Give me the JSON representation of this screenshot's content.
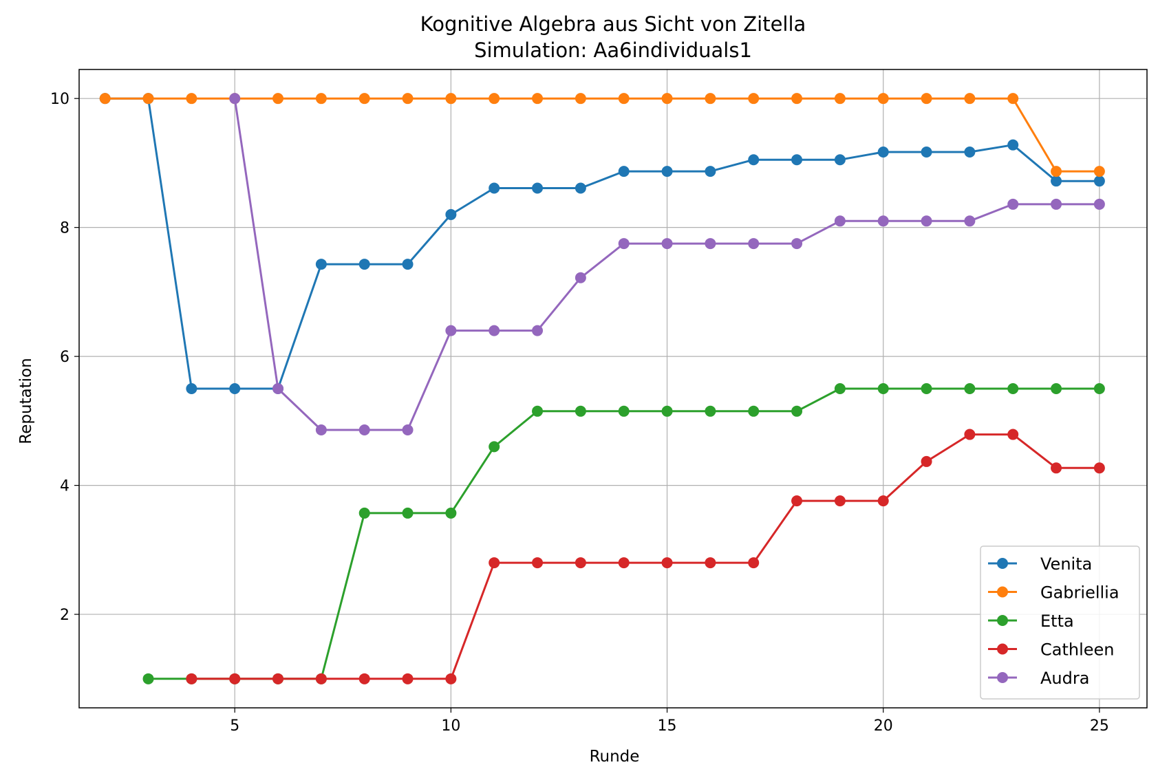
{
  "chart_data": {
    "type": "line",
    "title": "Kognitive Algebra aus Sicht von Zitella",
    "subtitle": "Simulation: Aa6individuals1",
    "xlabel": "Runde",
    "ylabel": "Reputation",
    "xlim": [
      1.4,
      26.1
    ],
    "ylim": [
      0.55,
      10.45
    ],
    "xticks": [
      5,
      10,
      15,
      20,
      25
    ],
    "yticks": [
      2,
      4,
      6,
      8,
      10
    ],
    "grid": true,
    "legend_position": "lower-right",
    "series": [
      {
        "name": "Venita",
        "color": "#1f77b4",
        "x": [
          2,
          3,
          4,
          5,
          6,
          7,
          8,
          9,
          10,
          11,
          12,
          13,
          14,
          15,
          16,
          17,
          18,
          19,
          20,
          21,
          22,
          23,
          24,
          25
        ],
        "y": [
          10,
          10,
          5.5,
          5.5,
          5.5,
          7.43,
          7.43,
          7.43,
          8.2,
          8.61,
          8.61,
          8.61,
          8.87,
          8.87,
          8.87,
          9.05,
          9.05,
          9.05,
          9.17,
          9.17,
          9.17,
          9.28,
          8.72,
          8.72
        ]
      },
      {
        "name": "Gabriellia",
        "color": "#ff7f0e",
        "x": [
          2,
          3,
          4,
          5,
          6,
          7,
          8,
          9,
          10,
          11,
          12,
          13,
          14,
          15,
          16,
          17,
          18,
          19,
          20,
          21,
          22,
          23,
          24,
          25
        ],
        "y": [
          10,
          10,
          10,
          10,
          10,
          10,
          10,
          10,
          10,
          10,
          10,
          10,
          10,
          10,
          10,
          10,
          10,
          10,
          10,
          10,
          10,
          10,
          8.87,
          8.87
        ]
      },
      {
        "name": "Etta",
        "color": "#2ca02c",
        "x": [
          3,
          4,
          5,
          6,
          7,
          8,
          9,
          10,
          11,
          12,
          13,
          14,
          15,
          16,
          17,
          18,
          19,
          20,
          21,
          22,
          23,
          24,
          25
        ],
        "y": [
          1,
          1,
          1,
          1,
          1,
          3.57,
          3.57,
          3.57,
          4.6,
          5.15,
          5.15,
          5.15,
          5.15,
          5.15,
          5.15,
          5.15,
          5.5,
          5.5,
          5.5,
          5.5,
          5.5,
          5.5,
          5.5
        ]
      },
      {
        "name": "Cathleen",
        "color": "#d62728",
        "x": [
          4,
          5,
          6,
          7,
          8,
          9,
          10,
          11,
          12,
          13,
          14,
          15,
          16,
          17,
          18,
          19,
          20,
          21,
          22,
          23,
          24,
          25
        ],
        "y": [
          1,
          1,
          1,
          1,
          1,
          1,
          1,
          2.8,
          2.8,
          2.8,
          2.8,
          2.8,
          2.8,
          2.8,
          3.76,
          3.76,
          3.76,
          4.37,
          4.79,
          4.79,
          4.27,
          4.27
        ]
      },
      {
        "name": "Audra",
        "color": "#9467bd",
        "x": [
          5,
          6,
          7,
          8,
          9,
          10,
          11,
          12,
          13,
          14,
          15,
          16,
          17,
          18,
          19,
          20,
          21,
          22,
          23,
          24,
          25
        ],
        "y": [
          10,
          5.5,
          4.86,
          4.86,
          4.86,
          6.4,
          6.4,
          6.4,
          7.22,
          7.75,
          7.75,
          7.75,
          7.75,
          7.75,
          8.1,
          8.1,
          8.1,
          8.1,
          8.36,
          8.36,
          8.36
        ]
      }
    ]
  }
}
